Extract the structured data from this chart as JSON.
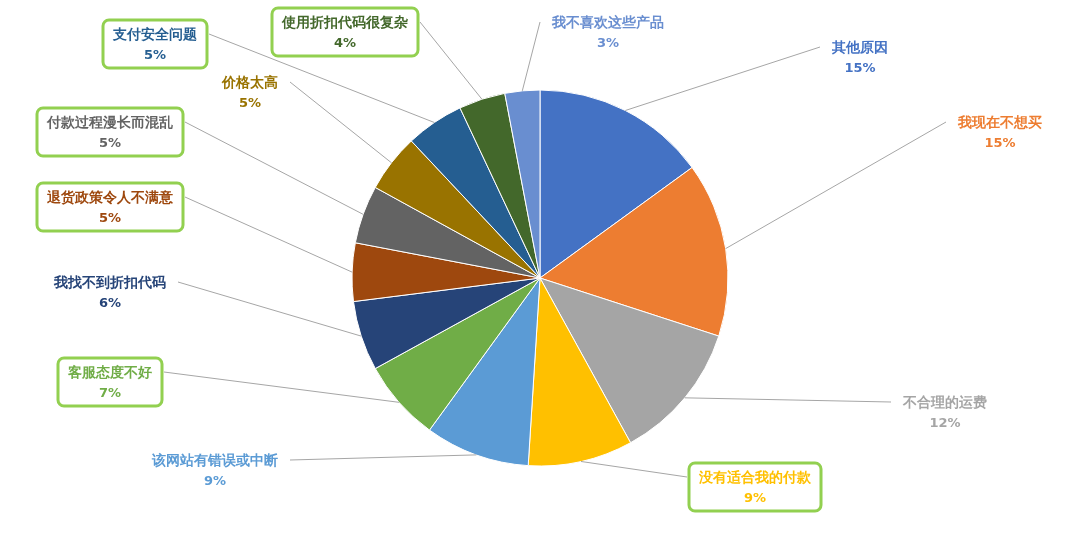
{
  "chart_data": {
    "type": "pie",
    "categories": [
      "其他原因",
      "我现在不想买",
      "不合理的运费",
      "没有适合我的付款",
      "该网站有错误或中断",
      "客服态度不好",
      "我找不到折扣代码",
      "退货政策令人不满意",
      "付款过程漫长而混乱",
      "价格太高",
      "支付安全问题",
      "使用折扣代码很复杂",
      "我不喜欢这些产品"
    ],
    "values": [
      15,
      15,
      12,
      9,
      9,
      7,
      6,
      5,
      5,
      5,
      5,
      4,
      3
    ],
    "value_labels": [
      "15%",
      "15%",
      "12%",
      "9%",
      "9%",
      "7%",
      "6%",
      "5%",
      "5%",
      "5%",
      "5%",
      "4%",
      "3%"
    ],
    "colors": [
      "#4472c4",
      "#ed7d31",
      "#a5a5a5",
      "#ffc000",
      "#5b9bd5",
      "#70ad47",
      "#264478",
      "#9e480e",
      "#636363",
      "#997300",
      "#255e91",
      "#43682b",
      "#698ed0"
    ]
  }
}
